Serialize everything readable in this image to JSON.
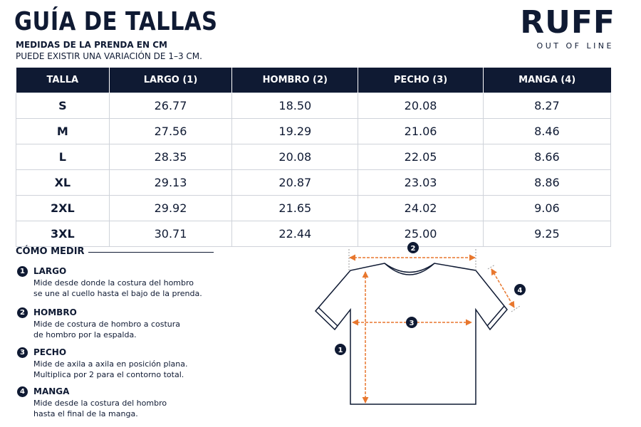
{
  "header": {
    "title": "GUÍA DE TALLAS",
    "subtitle": [
      "MEDIDAS DE LA PRENDA EN CM",
      "PUEDE EXISTIR UNA VARIACIÓN DE 1–3 CM."
    ]
  },
  "brand": {
    "name": "RUFF",
    "tagline": "OUT OF LINE"
  },
  "table": {
    "columns": [
      "TALLA",
      "LARGO (1)",
      "HOMBRO (2)",
      "PECHO (3)",
      "MANGA (4)"
    ],
    "rows": [
      [
        "S",
        "26.77",
        "18.50",
        "20.08",
        "8.27"
      ],
      [
        "M",
        "27.56",
        "19.29",
        "21.06",
        "8.46"
      ],
      [
        "L",
        "28.35",
        "20.08",
        "22.05",
        "8.66"
      ],
      [
        "XL",
        "29.13",
        "20.87",
        "23.03",
        "8.86"
      ],
      [
        "2XL",
        "29.92",
        "21.65",
        "24.02",
        "9.06"
      ],
      [
        "3XL",
        "30.71",
        "22.44",
        "25.00",
        "9.25"
      ]
    ]
  },
  "how_to": {
    "title": "CÓMO MEDIR",
    "steps": [
      {
        "number": "1",
        "title": "LARGO",
        "text": [
          "Mide desde donde la costura del hombro",
          "se une al cuello hasta el bajo de la prenda."
        ]
      },
      {
        "number": "2",
        "title": "HOMBRO",
        "text": [
          "Mide de costura de hombro a costura",
          "de hombro por la espalda."
        ]
      },
      {
        "number": "3",
        "title": "PECHO",
        "text": [
          "Mide de axila a axila en posición plana.",
          "Multiplica por 2 para el contorno total."
        ]
      },
      {
        "number": "4",
        "title": "MANGA",
        "text": [
          "Mide desde la costura del hombro",
          "hasta el final de la manga."
        ]
      }
    ]
  }
}
